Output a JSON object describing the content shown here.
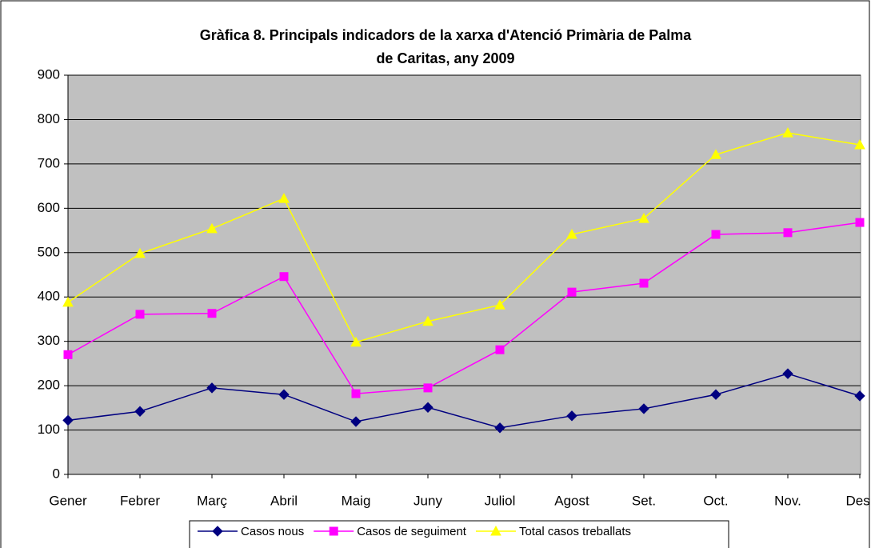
{
  "chart_data": {
    "type": "line",
    "title": [
      "Gràfica 8. Principals indicadors de la xarxa d'Atenció Primària de Palma",
      "de Caritas, any 2009"
    ],
    "categories": [
      "Gener",
      "Febrer",
      "Març",
      "Abril",
      "Maig",
      "Juny",
      "Juliol",
      "Agost",
      "Set.",
      "Oct.",
      "Nov.",
      "Des."
    ],
    "series": [
      {
        "name": "Casos nous",
        "color": "#000080",
        "marker": "diamond",
        "values": [
          122,
          142,
          195,
          180,
          119,
          151,
          105,
          132,
          148,
          180,
          227,
          177
        ]
      },
      {
        "name": "Casos de seguiment",
        "color": "#ff00ff",
        "marker": "square",
        "values": [
          270,
          361,
          363,
          446,
          182,
          195,
          281,
          411,
          431,
          541,
          545,
          568
        ]
      },
      {
        "name": "Total casos treballats",
        "color": "#ffff00",
        "marker": "triangle",
        "values": [
          388,
          498,
          554,
          622,
          298,
          345,
          382,
          541,
          577,
          721,
          770,
          743
        ]
      }
    ],
    "ylim": [
      0,
      900
    ],
    "yticks": [
      0,
      100,
      200,
      300,
      400,
      500,
      600,
      700,
      800,
      900
    ],
    "grid": true,
    "legend": "bottom"
  }
}
